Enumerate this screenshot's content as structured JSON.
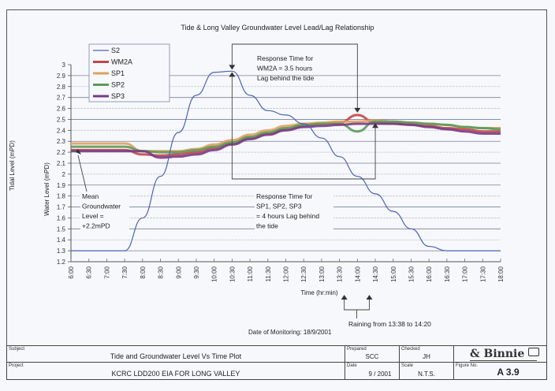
{
  "chart_data": {
    "type": "line",
    "title": "Tide & Long Valley Groundwater Level Lead/Lag Relationship",
    "xlabel": "Time (hr:min)",
    "ylabel_outer": "Tidal Level (mPD)",
    "ylabel_inner": "Water Level (mPD)",
    "ylim": [
      1.2,
      3.0
    ],
    "y_ticks": [
      "3",
      "2.9",
      "2.8",
      "2.7",
      "2.6",
      "2.5",
      "2.4",
      "2.3",
      "2.2",
      "2.1",
      "2",
      "1.9",
      "1.8",
      "1.7",
      "1.6",
      "1.5",
      "1.4",
      "1.3",
      "1.2"
    ],
    "x_ticks": [
      "6:00",
      "6:30",
      "7:00",
      "7:30",
      "8:00",
      "8:30",
      "9:00",
      "9:30",
      "10:00",
      "10:30",
      "11:00",
      "11:30",
      "12:00",
      "12:30",
      "13:00",
      "13:30",
      "14:00",
      "14:30",
      "15:00",
      "15:30",
      "16:00",
      "16:30",
      "17:00",
      "17:30",
      "18:00"
    ],
    "grid": true,
    "legend_position": "top-left",
    "x_hours": [
      6,
      6.5,
      7,
      7.5,
      8,
      8.5,
      9,
      9.5,
      10,
      10.5,
      11,
      11.5,
      12,
      12.5,
      13,
      13.5,
      14,
      14.5,
      15,
      15.5,
      16,
      16.5,
      17,
      17.5,
      18
    ],
    "series": [
      {
        "name": "S2",
        "color": "#4a62b8",
        "values": [
          1.3,
          1.3,
          1.3,
          1.3,
          1.6,
          1.98,
          2.38,
          2.72,
          2.93,
          2.94,
          2.72,
          2.58,
          2.54,
          2.46,
          2.33,
          2.16,
          1.98,
          1.82,
          1.66,
          1.5,
          1.34,
          1.3,
          1.3,
          1.3,
          1.3
        ]
      },
      {
        "name": "WM2A",
        "color": "#c0474a",
        "values": [
          2.22,
          2.22,
          2.22,
          2.22,
          2.18,
          2.17,
          2.18,
          2.2,
          2.24,
          2.28,
          2.33,
          2.37,
          2.41,
          2.44,
          2.46,
          2.47,
          2.54,
          2.47,
          2.46,
          2.45,
          2.44,
          2.42,
          2.41,
          2.39,
          2.39
        ]
      },
      {
        "name": "SP1",
        "color": "#e0a060",
        "values": [
          2.28,
          2.28,
          2.28,
          2.28,
          2.21,
          2.21,
          2.21,
          2.23,
          2.27,
          2.31,
          2.36,
          2.4,
          2.44,
          2.46,
          2.47,
          2.48,
          2.48,
          2.49,
          2.48,
          2.47,
          2.46,
          2.45,
          2.43,
          2.42,
          2.42
        ]
      },
      {
        "name": "SP2",
        "color": "#5a9a5a",
        "values": [
          2.25,
          2.25,
          2.25,
          2.25,
          2.21,
          2.2,
          2.2,
          2.22,
          2.25,
          2.29,
          2.34,
          2.38,
          2.42,
          2.45,
          2.46,
          2.46,
          2.39,
          2.48,
          2.48,
          2.47,
          2.46,
          2.45,
          2.43,
          2.42,
          2.41
        ]
      },
      {
        "name": "SP3",
        "color": "#7a3a88",
        "values": [
          2.21,
          2.21,
          2.21,
          2.21,
          2.21,
          2.15,
          2.16,
          2.18,
          2.22,
          2.27,
          2.32,
          2.36,
          2.4,
          2.43,
          2.44,
          2.45,
          2.46,
          2.46,
          2.46,
          2.45,
          2.43,
          2.41,
          2.39,
          2.37,
          2.37
        ]
      }
    ],
    "annotations": [
      {
        "id": "wm2a",
        "lines": [
          "Response Time for",
          "WM2A = 3.5 hours",
          "Lag behind the tide"
        ]
      },
      {
        "id": "sp",
        "lines": [
          "Response Time for",
          "SP1, SP2, SP3",
          "= 4 hours Lag behind",
          "the tide"
        ]
      },
      {
        "id": "mean",
        "lines": [
          "Mean",
          "Groundwater",
          "Level =",
          "+2.2mPD"
        ]
      },
      {
        "id": "rain",
        "lines": [
          "Raining from 13:38 to 14:20"
        ]
      }
    ],
    "date_note": "Date of Monitoring: 18/9/2001"
  },
  "title_block": {
    "subject_label": "Subject",
    "subject": "Tide and Groundwater Level Vs Time Plot",
    "project_label": "Project",
    "project": "KCRC LDD200 EIA FOR LONG VALLEY",
    "prepared_label": "Prepared",
    "prepared": "SCC",
    "checked_label": "Checked",
    "checked": "JH",
    "date_label": "Date",
    "date": "9 / 2001",
    "scale_label": "Scale",
    "scale": "N.T.S.",
    "figure_label": "Figure No.",
    "figure": "A 3.9",
    "logo": "Binnie"
  }
}
